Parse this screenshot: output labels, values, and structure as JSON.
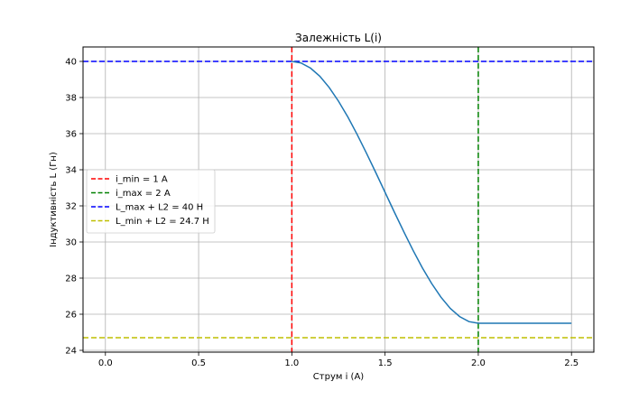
{
  "chart_data": {
    "type": "line",
    "title": "Залежність L(i)",
    "xlabel": "Струм i (A)",
    "ylabel": "Індуктивність L (Гн)",
    "xlim": [
      -0.12,
      2.62
    ],
    "ylim": [
      23.9,
      40.8
    ],
    "xticks": [
      0.0,
      0.5,
      1.0,
      1.5,
      2.0,
      2.5
    ],
    "xtick_labels": [
      "0.0",
      "0.5",
      "1.0",
      "1.5",
      "2.0",
      "2.5"
    ],
    "yticks": [
      24,
      26,
      28,
      30,
      32,
      34,
      36,
      38,
      40
    ],
    "ytick_labels": [
      "24",
      "26",
      "28",
      "30",
      "32",
      "34",
      "36",
      "38",
      "40"
    ],
    "grid": true,
    "legend_position": "center-left",
    "series": [
      {
        "kind": "curve",
        "color": "#1f77b4",
        "x": [
          1.0,
          1.05,
          1.1,
          1.15,
          1.2,
          1.25,
          1.3,
          1.35,
          1.4,
          1.45,
          1.5,
          1.55,
          1.6,
          1.65,
          1.7,
          1.75,
          1.8,
          1.85,
          1.9,
          1.95,
          2.0,
          2.5
        ],
        "y": [
          40.0,
          39.91,
          39.63,
          39.18,
          38.56,
          37.8,
          36.93,
          35.96,
          34.92,
          33.85,
          32.75,
          31.65,
          30.58,
          29.54,
          28.57,
          27.7,
          26.94,
          26.32,
          25.87,
          25.59,
          25.5,
          25.5
        ]
      },
      {
        "name": "i_min = 1 A",
        "kind": "vline",
        "x": 1.0,
        "color": "#ff0000"
      },
      {
        "name": "i_max = 2 A",
        "kind": "vline",
        "x": 2.0,
        "color": "#008000"
      },
      {
        "name": "L_max + L2 = 40 H",
        "kind": "hline",
        "y": 40.0,
        "color": "#0000ff"
      },
      {
        "name": "L_min + L2 = 24.7 H",
        "kind": "hline",
        "y": 24.7,
        "color": "#bfbf00"
      }
    ]
  }
}
